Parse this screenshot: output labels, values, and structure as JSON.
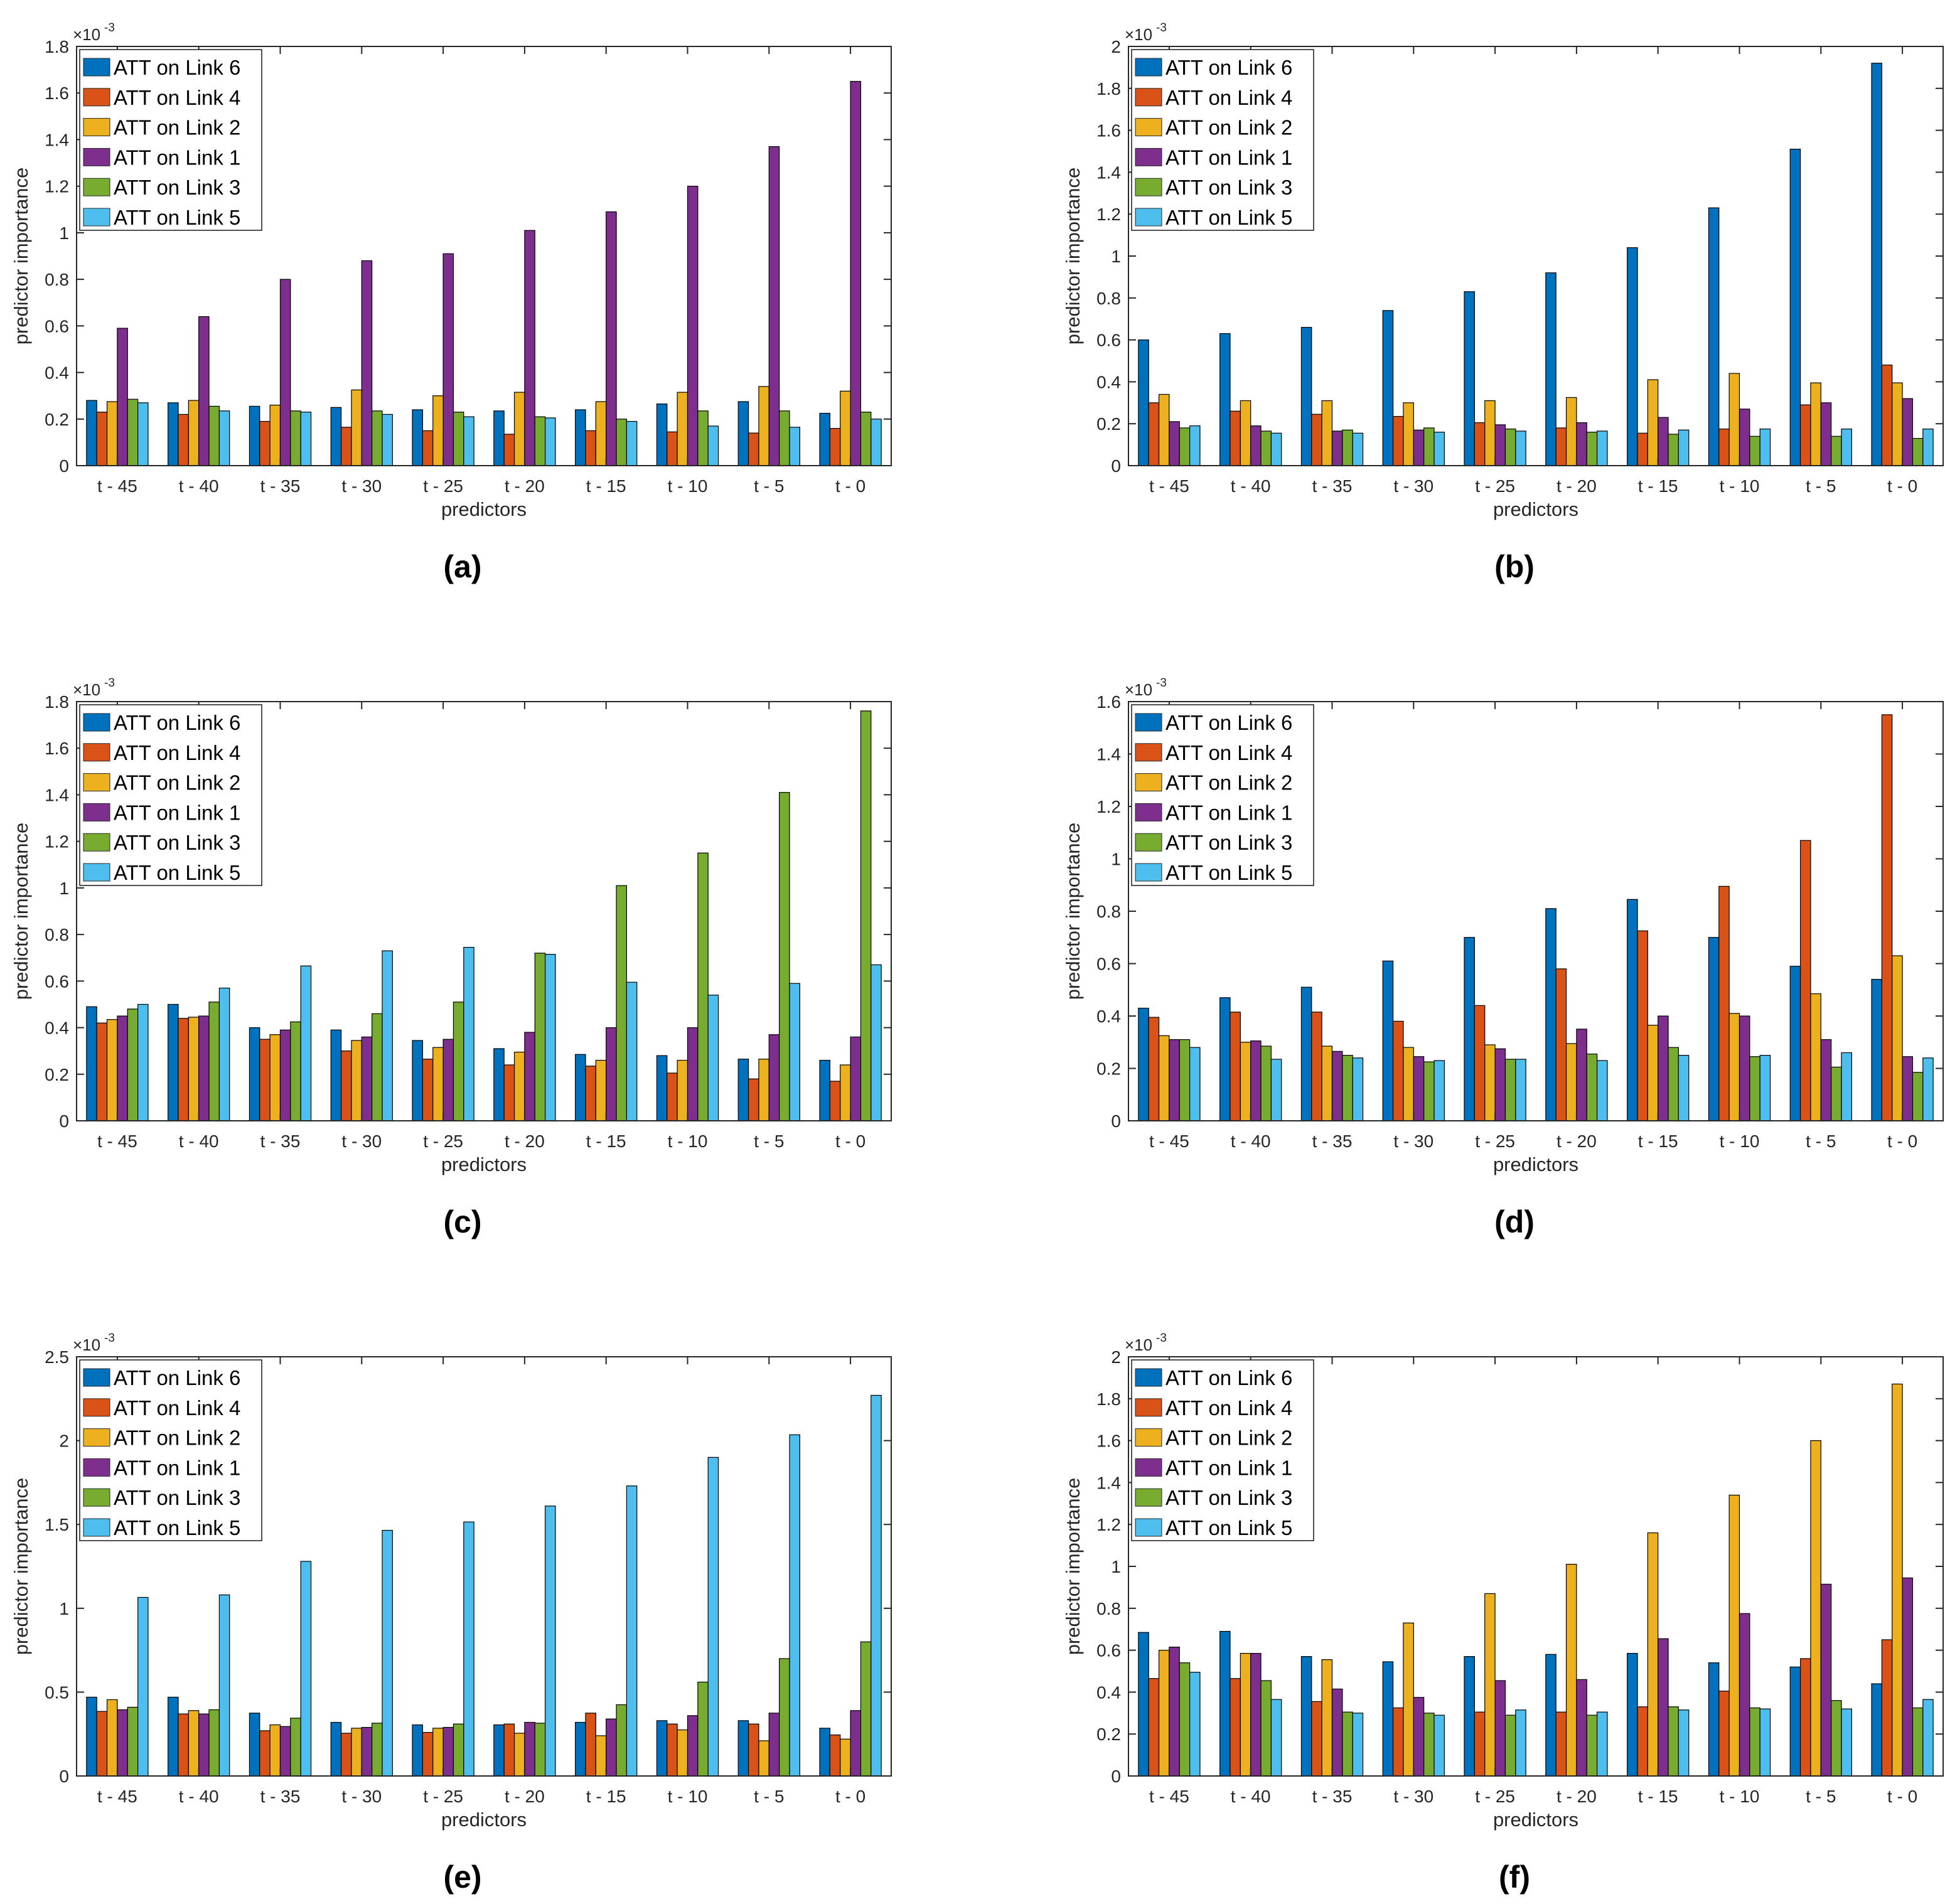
{
  "figure": {
    "series_names": [
      "ATT on Link 6",
      "ATT on Link 4",
      "ATT on Link 2",
      "ATT on Link 1",
      "ATT on Link 3",
      "ATT on Link 5"
    ],
    "series_colors": [
      "#0072BD",
      "#D95319",
      "#EDB120",
      "#7E2F8E",
      "#77AC30",
      "#4DBEEE"
    ]
  },
  "chart_data": [
    {
      "type": "bar",
      "caption": "(a)",
      "title": "",
      "xlabel": "predictors",
      "ylabel": "predictor importance",
      "exponent_label": "×10",
      "exponent_power": "-3",
      "categories": [
        "t - 45",
        "t - 40",
        "t - 35",
        "t - 30",
        "t - 25",
        "t - 20",
        "t - 15",
        "t - 10",
        "t - 5",
        "t - 0"
      ],
      "ylim": [
        0,
        1.8
      ],
      "yticks": [
        0,
        0.2,
        0.4,
        0.6,
        0.8,
        1,
        1.2,
        1.4,
        1.6,
        1.8
      ],
      "legend_position": "top-left",
      "series": [
        {
          "name": "ATT on Link 6",
          "values": [
            0.28,
            0.27,
            0.255,
            0.25,
            0.24,
            0.235,
            0.24,
            0.265,
            0.275,
            0.225
          ]
        },
        {
          "name": "ATT on Link 4",
          "values": [
            0.23,
            0.22,
            0.19,
            0.165,
            0.15,
            0.135,
            0.15,
            0.145,
            0.14,
            0.16
          ]
        },
        {
          "name": "ATT on Link 2",
          "values": [
            0.275,
            0.28,
            0.26,
            0.325,
            0.3,
            0.315,
            0.275,
            0.315,
            0.34,
            0.32
          ]
        },
        {
          "name": "ATT on Link 1",
          "values": [
            0.59,
            0.64,
            0.8,
            0.88,
            0.91,
            1.01,
            1.09,
            1.2,
            1.37,
            1.65
          ]
        },
        {
          "name": "ATT on Link 3",
          "values": [
            0.285,
            0.255,
            0.235,
            0.235,
            0.23,
            0.21,
            0.2,
            0.235,
            0.235,
            0.23
          ]
        },
        {
          "name": "ATT on Link 5",
          "values": [
            0.27,
            0.235,
            0.23,
            0.22,
            0.21,
            0.205,
            0.19,
            0.17,
            0.165,
            0.2
          ]
        }
      ]
    },
    {
      "type": "bar",
      "caption": "(b)",
      "title": "",
      "xlabel": "predictors",
      "ylabel": "predictor importance",
      "exponent_label": "×10",
      "exponent_power": "-3",
      "categories": [
        "t - 45",
        "t - 40",
        "t - 35",
        "t - 30",
        "t - 25",
        "t - 20",
        "t - 15",
        "t - 10",
        "t - 5",
        "t - 0"
      ],
      "ylim": [
        0,
        2
      ],
      "yticks": [
        0,
        0.2,
        0.4,
        0.6,
        0.8,
        1,
        1.2,
        1.4,
        1.6,
        1.8,
        2
      ],
      "legend_position": "top-left",
      "series": [
        {
          "name": "ATT on Link 6",
          "values": [
            0.6,
            0.63,
            0.66,
            0.74,
            0.83,
            0.92,
            1.04,
            1.23,
            1.51,
            1.92
          ]
        },
        {
          "name": "ATT on Link 4",
          "values": [
            0.3,
            0.26,
            0.245,
            0.235,
            0.205,
            0.18,
            0.155,
            0.175,
            0.29,
            0.48
          ]
        },
        {
          "name": "ATT on Link 2",
          "values": [
            0.34,
            0.31,
            0.31,
            0.3,
            0.31,
            0.325,
            0.41,
            0.44,
            0.395,
            0.395
          ]
        },
        {
          "name": "ATT on Link 1",
          "values": [
            0.21,
            0.19,
            0.165,
            0.17,
            0.195,
            0.205,
            0.23,
            0.27,
            0.3,
            0.32
          ]
        },
        {
          "name": "ATT on Link 3",
          "values": [
            0.18,
            0.165,
            0.17,
            0.18,
            0.175,
            0.16,
            0.15,
            0.14,
            0.14,
            0.13
          ]
        },
        {
          "name": "ATT on Link 5",
          "values": [
            0.19,
            0.155,
            0.155,
            0.16,
            0.165,
            0.165,
            0.17,
            0.175,
            0.175,
            0.175
          ]
        }
      ]
    },
    {
      "type": "bar",
      "caption": "(c)",
      "title": "",
      "xlabel": "predictors",
      "ylabel": "predictor importance",
      "exponent_label": "×10",
      "exponent_power": "-3",
      "categories": [
        "t - 45",
        "t - 40",
        "t - 35",
        "t - 30",
        "t - 25",
        "t - 20",
        "t - 15",
        "t - 10",
        "t - 5",
        "t - 0"
      ],
      "ylim": [
        0,
        1.8
      ],
      "yticks": [
        0,
        0.2,
        0.4,
        0.6,
        0.8,
        1,
        1.2,
        1.4,
        1.6,
        1.8
      ],
      "legend_position": "top-left",
      "series": [
        {
          "name": "ATT on Link 6",
          "values": [
            0.49,
            0.5,
            0.4,
            0.39,
            0.345,
            0.31,
            0.285,
            0.28,
            0.265,
            0.26
          ]
        },
        {
          "name": "ATT on Link 4",
          "values": [
            0.42,
            0.44,
            0.35,
            0.3,
            0.265,
            0.24,
            0.235,
            0.205,
            0.18,
            0.17
          ]
        },
        {
          "name": "ATT on Link 2",
          "values": [
            0.435,
            0.445,
            0.37,
            0.345,
            0.315,
            0.295,
            0.26,
            0.26,
            0.265,
            0.24
          ]
        },
        {
          "name": "ATT on Link 1",
          "values": [
            0.45,
            0.45,
            0.39,
            0.36,
            0.35,
            0.38,
            0.4,
            0.4,
            0.37,
            0.36
          ]
        },
        {
          "name": "ATT on Link 3",
          "values": [
            0.48,
            0.51,
            0.425,
            0.46,
            0.51,
            0.72,
            1.01,
            1.15,
            1.41,
            1.76
          ]
        },
        {
          "name": "ATT on Link 5",
          "values": [
            0.5,
            0.57,
            0.665,
            0.73,
            0.745,
            0.715,
            0.595,
            0.54,
            0.59,
            0.67
          ]
        }
      ]
    },
    {
      "type": "bar",
      "caption": "(d)",
      "title": "",
      "xlabel": "predictors",
      "ylabel": "predictor importance",
      "exponent_label": "×10",
      "exponent_power": "-3",
      "categories": [
        "t - 45",
        "t - 40",
        "t - 35",
        "t - 30",
        "t - 25",
        "t - 20",
        "t - 15",
        "t - 10",
        "t - 5",
        "t - 0"
      ],
      "ylim": [
        0,
        1.6
      ],
      "yticks": [
        0,
        0.2,
        0.4,
        0.6,
        0.8,
        1,
        1.2,
        1.4,
        1.6
      ],
      "legend_position": "top-left",
      "series": [
        {
          "name": "ATT on Link 6",
          "values": [
            0.43,
            0.47,
            0.51,
            0.61,
            0.7,
            0.81,
            0.845,
            0.7,
            0.59,
            0.54
          ]
        },
        {
          "name": "ATT on Link 4",
          "values": [
            0.395,
            0.415,
            0.415,
            0.38,
            0.44,
            0.58,
            0.725,
            0.895,
            1.07,
            1.55
          ]
        },
        {
          "name": "ATT on Link 2",
          "values": [
            0.325,
            0.3,
            0.285,
            0.28,
            0.29,
            0.295,
            0.365,
            0.41,
            0.485,
            0.63
          ]
        },
        {
          "name": "ATT on Link 1",
          "values": [
            0.31,
            0.305,
            0.265,
            0.245,
            0.275,
            0.35,
            0.4,
            0.4,
            0.31,
            0.245
          ]
        },
        {
          "name": "ATT on Link 3",
          "values": [
            0.31,
            0.285,
            0.25,
            0.225,
            0.235,
            0.255,
            0.28,
            0.245,
            0.205,
            0.185
          ]
        },
        {
          "name": "ATT on Link 5",
          "values": [
            0.28,
            0.235,
            0.24,
            0.23,
            0.235,
            0.23,
            0.25,
            0.25,
            0.26,
            0.24
          ]
        }
      ]
    },
    {
      "type": "bar",
      "caption": "(e)",
      "title": "",
      "xlabel": "predictors",
      "ylabel": "predictor importance",
      "exponent_label": "×10",
      "exponent_power": "-3",
      "categories": [
        "t - 45",
        "t - 40",
        "t - 35",
        "t - 30",
        "t - 25",
        "t - 20",
        "t - 15",
        "t - 10",
        "t - 5",
        "t - 0"
      ],
      "ylim": [
        0,
        2.5
      ],
      "yticks": [
        0,
        0.5,
        1,
        1.5,
        2,
        2.5
      ],
      "legend_position": "top-left",
      "series": [
        {
          "name": "ATT on Link 6",
          "values": [
            0.47,
            0.47,
            0.375,
            0.32,
            0.305,
            0.305,
            0.32,
            0.33,
            0.33,
            0.285
          ]
        },
        {
          "name": "ATT on Link 4",
          "values": [
            0.385,
            0.37,
            0.27,
            0.255,
            0.26,
            0.31,
            0.375,
            0.31,
            0.31,
            0.245
          ]
        },
        {
          "name": "ATT on Link 2",
          "values": [
            0.455,
            0.39,
            0.305,
            0.285,
            0.285,
            0.255,
            0.24,
            0.275,
            0.21,
            0.22
          ]
        },
        {
          "name": "ATT on Link 1",
          "values": [
            0.395,
            0.37,
            0.295,
            0.29,
            0.29,
            0.32,
            0.34,
            0.36,
            0.375,
            0.39
          ]
        },
        {
          "name": "ATT on Link 3",
          "values": [
            0.41,
            0.395,
            0.345,
            0.315,
            0.31,
            0.315,
            0.425,
            0.56,
            0.7,
            0.8
          ]
        },
        {
          "name": "ATT on Link 5",
          "values": [
            1.065,
            1.08,
            1.28,
            1.465,
            1.515,
            1.61,
            1.73,
            1.9,
            2.035,
            2.27
          ]
        }
      ]
    },
    {
      "type": "bar",
      "caption": "(f)",
      "title": "",
      "xlabel": "predictors",
      "ylabel": "predictor importance",
      "exponent_label": "×10",
      "exponent_power": "-3",
      "categories": [
        "t - 45",
        "t - 40",
        "t - 35",
        "t - 30",
        "t - 25",
        "t - 20",
        "t - 15",
        "t - 10",
        "t - 5",
        "t - 0"
      ],
      "ylim": [
        0,
        2
      ],
      "yticks": [
        0,
        0.2,
        0.4,
        0.6,
        0.8,
        1,
        1.2,
        1.4,
        1.6,
        1.8,
        2
      ],
      "legend_position": "top-left",
      "series": [
        {
          "name": "ATT on Link 6",
          "values": [
            0.685,
            0.69,
            0.57,
            0.545,
            0.57,
            0.58,
            0.585,
            0.54,
            0.52,
            0.44
          ]
        },
        {
          "name": "ATT on Link 4",
          "values": [
            0.465,
            0.465,
            0.355,
            0.325,
            0.305,
            0.305,
            0.33,
            0.405,
            0.56,
            0.65
          ]
        },
        {
          "name": "ATT on Link 2",
          "values": [
            0.6,
            0.585,
            0.555,
            0.73,
            0.87,
            1.01,
            1.16,
            1.34,
            1.6,
            1.87
          ]
        },
        {
          "name": "ATT on Link 1",
          "values": [
            0.615,
            0.585,
            0.415,
            0.375,
            0.455,
            0.46,
            0.655,
            0.775,
            0.915,
            0.945
          ]
        },
        {
          "name": "ATT on Link 3",
          "values": [
            0.54,
            0.455,
            0.305,
            0.3,
            0.29,
            0.29,
            0.33,
            0.325,
            0.36,
            0.325
          ]
        },
        {
          "name": "ATT on Link 5",
          "values": [
            0.495,
            0.365,
            0.3,
            0.29,
            0.315,
            0.305,
            0.315,
            0.32,
            0.32,
            0.365
          ]
        }
      ]
    }
  ]
}
